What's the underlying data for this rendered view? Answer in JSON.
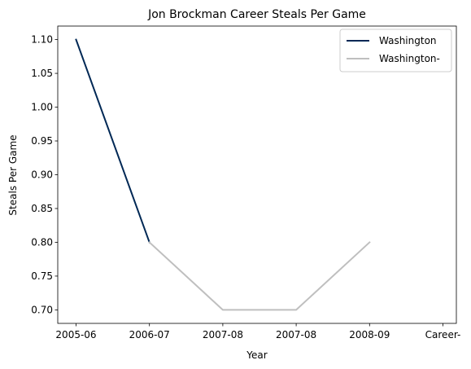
{
  "chart_data": {
    "type": "line",
    "title": "Jon Brockman Career Steals Per Game",
    "xlabel": "Year",
    "ylabel": "Steals Per Game",
    "categories": [
      "2005-06",
      "2006-07",
      "2007-08",
      "2007-08",
      "2008-09",
      "Career-"
    ],
    "ylim": [
      0.68,
      1.12
    ],
    "yticks": [
      0.7,
      0.75,
      0.8,
      0.85,
      0.9,
      0.95,
      1.0,
      1.05,
      1.1
    ],
    "series": [
      {
        "name": "Washington",
        "color": "#002855",
        "points": [
          {
            "x": 0,
            "y": 1.1
          },
          {
            "x": 1,
            "y": 0.8
          }
        ]
      },
      {
        "name": "Washington-",
        "color": "#bfbfbf",
        "points": [
          {
            "x": 1,
            "y": 0.8
          },
          {
            "x": 2,
            "y": 0.7
          },
          {
            "x": 3,
            "y": 0.7
          },
          {
            "x": 4,
            "y": 0.8
          }
        ]
      }
    ],
    "legend": "top-right",
    "grid": false
  }
}
